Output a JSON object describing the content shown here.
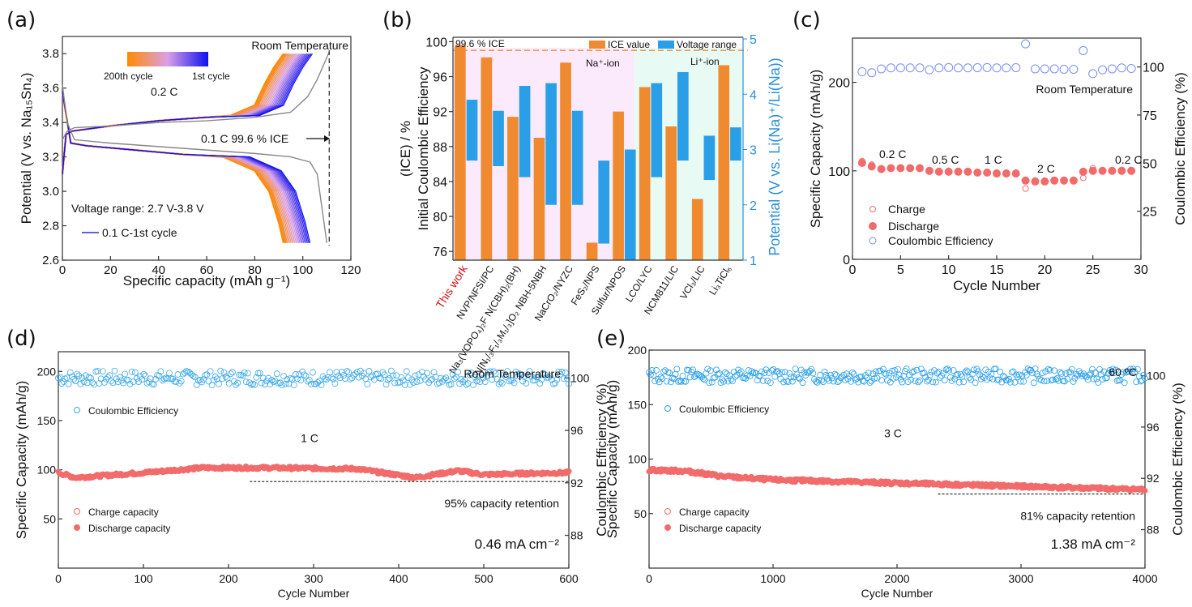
{
  "figure": {
    "panel_labels": [
      "(a)",
      "(b)",
      "(c)",
      "(d)",
      "(e)"
    ]
  },
  "chart_data": [
    {
      "id": "a",
      "type": "line",
      "title": "",
      "xlabel": "Specific capacity (mAh g⁻¹)",
      "ylabel": "Potential (V vs. Na₁₅Sn₄)",
      "xlim": [
        0,
        120
      ],
      "ylim": [
        2.6,
        3.9
      ],
      "xticks": [
        0,
        20,
        40,
        60,
        80,
        100,
        120
      ],
      "yticks": [
        2.6,
        2.8,
        3.0,
        3.2,
        3.4,
        3.6,
        3.8
      ],
      "annotations": {
        "top_right": "Room Temperature",
        "rate": "0.2 C",
        "ice": "0.1 C  99.6 % ICE",
        "voltage_range": "Voltage range: 2.7 V-3.8 V",
        "first_cycle_legend": "0.1 C-1st cycle",
        "gradient_left": "200th cycle",
        "gradient_right": "1st cycle"
      },
      "colors": {
        "start": "#ff8a00",
        "mid": "#d9a0e8",
        "end": "#1010f0",
        "first_cycle": "#888888"
      },
      "ice_line_x": 111,
      "series": [
        {
          "name": "0.1 C 1st cycle charge",
          "x": [
            0,
            2,
            5,
            20,
            40,
            60,
            80,
            95,
            102,
            106,
            111
          ],
          "y": [
            3.3,
            3.35,
            3.37,
            3.38,
            3.4,
            3.41,
            3.43,
            3.46,
            3.55,
            3.65,
            3.81
          ]
        },
        {
          "name": "0.1 C 1st cycle discharge",
          "x": [
            0,
            2,
            5,
            20,
            40,
            60,
            80,
            95,
            103,
            106,
            108,
            110
          ],
          "y": [
            3.62,
            3.4,
            3.3,
            3.28,
            3.26,
            3.24,
            3.22,
            3.2,
            3.17,
            3.1,
            2.9,
            2.7
          ]
        },
        {
          "name": "0.2 C cycles charge (1st→200th)",
          "end_capacity_range": [
            104,
            92
          ],
          "end_voltage": 3.8
        },
        {
          "name": "0.2 C cycles discharge (1st→200th)",
          "end_capacity_range": [
            103,
            92
          ],
          "end_voltage": 2.7
        }
      ]
    },
    {
      "id": "b",
      "type": "bar",
      "xlabel": "",
      "ylabel": "Initial Coulombic Efficiency\n(ICE) / %",
      "ylabel_right": "Potential (V vs. Li(Na)⁺/Li(Na))",
      "ylim": [
        75,
        100.5
      ],
      "yticks": [
        76,
        80,
        84,
        88,
        92,
        96,
        100
      ],
      "ylim_right": [
        1,
        5
      ],
      "yticks_right": [
        1,
        2,
        3,
        4,
        5
      ],
      "legend": [
        "ICE value",
        "Voltage range"
      ],
      "legend_position": "top-right",
      "annotations": {
        "ice_text": "99.6 % ICE",
        "na_region": "Na⁺-ion",
        "li_region": "Li⁺-ion"
      },
      "ice_reference": 99.0,
      "colors": {
        "ice": "#f08a30",
        "voltage": "#2a9fe8",
        "na_bg": "#fbeafb",
        "li_bg": "#e8faf4",
        "highlight_label": "#d01010"
      },
      "categories": [
        "This work",
        "NVP/NFSI/PC",
        "Na₃(VOPO₄)₂F N(CBH)₂(BH)",
        "N[N₁/₃F₁/₃M₁/₃]O₂ NBH-5NBH",
        "NaCrO₂/NYZC",
        "FeS₂/NPS",
        "Sulfur/NPOS",
        "LCO/LYC",
        "NCM811/LIC",
        "VCl₃/LIC",
        "Li₃TiCl₆"
      ],
      "region_split_index": 7,
      "series": [
        {
          "name": "ICE value",
          "values": [
            99.6,
            98.2,
            91.4,
            89.0,
            97.6,
            77.0,
            92.0,
            94.8,
            90.3,
            82.0,
            97.3
          ]
        },
        {
          "name": "Voltage range",
          "low": [
            2.8,
            2.7,
            2.5,
            2.0,
            2.0,
            1.3,
            1.0,
            2.5,
            2.8,
            2.45,
            2.8
          ],
          "high": [
            3.9,
            3.7,
            4.15,
            4.2,
            3.7,
            2.8,
            3.0,
            4.2,
            4.4,
            3.25,
            3.4
          ]
        }
      ]
    },
    {
      "id": "c",
      "type": "scatter",
      "xlabel": "Cycle Number",
      "ylabel": "Specific Capacity (mAh/g)",
      "ylabel_right": "Coulombic Efficiency (%)",
      "xlim": [
        0,
        30
      ],
      "ylim": [
        0,
        250
      ],
      "ylim_right": [
        0,
        115
      ],
      "xticks": [
        0,
        5,
        10,
        15,
        20,
        25,
        30
      ],
      "yticks": [
        0,
        100,
        200
      ],
      "yticks_right": [
        25,
        50,
        75,
        100
      ],
      "legend": [
        "Charge",
        "Discharge",
        "Coulombic Efficiency"
      ],
      "legend_position": "bottom-left",
      "annotations": {
        "temp": "Room Temperature",
        "rates": [
          "0.2 C",
          "0.5 C",
          "1 C",
          "2 C",
          "0.2 C"
        ]
      },
      "colors": {
        "capacity": "#f26b6b",
        "ce": "#7a8df0"
      },
      "x": [
        1,
        2,
        3,
        4,
        5,
        6,
        7,
        8,
        9,
        10,
        11,
        12,
        13,
        14,
        15,
        16,
        17,
        18,
        19,
        20,
        21,
        22,
        23,
        24,
        25,
        26,
        27,
        28,
        29
      ],
      "series": [
        {
          "name": "Charge",
          "values": [
            111,
            107,
            102,
            103,
            103,
            103,
            103,
            100,
            100,
            100,
            100,
            99,
            98,
            98,
            98,
            98,
            98,
            80,
            89,
            88,
            89,
            89,
            89,
            92,
            103,
            100,
            100,
            100,
            100
          ]
        },
        {
          "name": "Discharge",
          "values": [
            109,
            105,
            102,
            103,
            103,
            103,
            103,
            100,
            99,
            99,
            99,
            99,
            98,
            98,
            97,
            97,
            97,
            89,
            88,
            88,
            89,
            89,
            89,
            99,
            100,
            100,
            100,
            100,
            100
          ]
        },
        {
          "name": "Coulombic Efficiency",
          "axis": "right",
          "values": [
            97.5,
            97,
            99,
            99.5,
            99.5,
            99.5,
            99.5,
            98.5,
            99.5,
            99.7,
            99.5,
            99.5,
            99.6,
            99.7,
            99.5,
            99.5,
            99.6,
            112,
            99,
            99,
            99,
            98.8,
            98.8,
            108.5,
            96.5,
            98.5,
            99,
            99.5,
            99.2
          ]
        }
      ]
    },
    {
      "id": "d",
      "type": "scatter",
      "xlabel": "Cycle Number",
      "ylabel": "Specific Capacity (mAh/g)",
      "ylabel_right": "Coulombic Efficiency (%)",
      "xlim": [
        0,
        600
      ],
      "ylim": [
        0,
        220
      ],
      "ylim_right": [
        85.5,
        102
      ],
      "xticks": [
        0,
        100,
        200,
        300,
        400,
        500,
        600
      ],
      "yticks": [
        50,
        100,
        150,
        200
      ],
      "yticks_right": [
        88,
        92,
        96,
        100
      ],
      "legend": [
        "Coulombic Efficiency",
        "Charge capacity",
        "Discharge capacity"
      ],
      "annotations": {
        "temp": "Room Temperature",
        "rate": "1 C",
        "retention": "95% capacity retention",
        "current": "0.46 mA cm⁻²"
      },
      "retention_line": {
        "x": [
          225,
          600
        ],
        "y": 88
      },
      "colors": {
        "capacity": "#f26b6b",
        "ce": "#3aa8e8"
      },
      "discharge_trend": {
        "x": [
          0,
          20,
          100,
          170,
          240,
          350,
          380,
          420,
          470,
          500,
          540,
          600
        ],
        "y": [
          97,
          92,
          97,
          102,
          102,
          101,
          97,
          92,
          99,
          95,
          96,
          97
        ]
      },
      "ce_mean": 100.0
    },
    {
      "id": "e",
      "type": "scatter",
      "xlabel": "Cycle Number",
      "ylabel": "Specific Capacity (mAh/g)",
      "ylabel_right": "Coulombic Efficiency (%)",
      "xlim": [
        0,
        4000
      ],
      "ylim": [
        0,
        200
      ],
      "ylim_right": [
        85,
        102
      ],
      "xticks": [
        0,
        1000,
        2000,
        3000,
        4000
      ],
      "yticks": [
        50,
        100,
        150,
        200
      ],
      "yticks_right": [
        88,
        92,
        96,
        100
      ],
      "legend": [
        "Coulombic Efficiency",
        "Charge capacity",
        "Discharge capacity"
      ],
      "annotations": {
        "temp": "60 ºC",
        "rate": "3 C",
        "retention": "81% capacity retention",
        "current": "1.38 mA cm⁻²"
      },
      "retention_line": {
        "x": [
          2330,
          4000
        ],
        "y": 68
      },
      "colors": {
        "capacity": "#f26b6b",
        "ce": "#2a9fe8"
      },
      "discharge_trend": {
        "x": [
          0,
          300,
          600,
          1000,
          2000,
          3000,
          4000
        ],
        "y": [
          90,
          89,
          84,
          81,
          78,
          75,
          72
        ]
      },
      "ce_mean": 100.0
    }
  ]
}
